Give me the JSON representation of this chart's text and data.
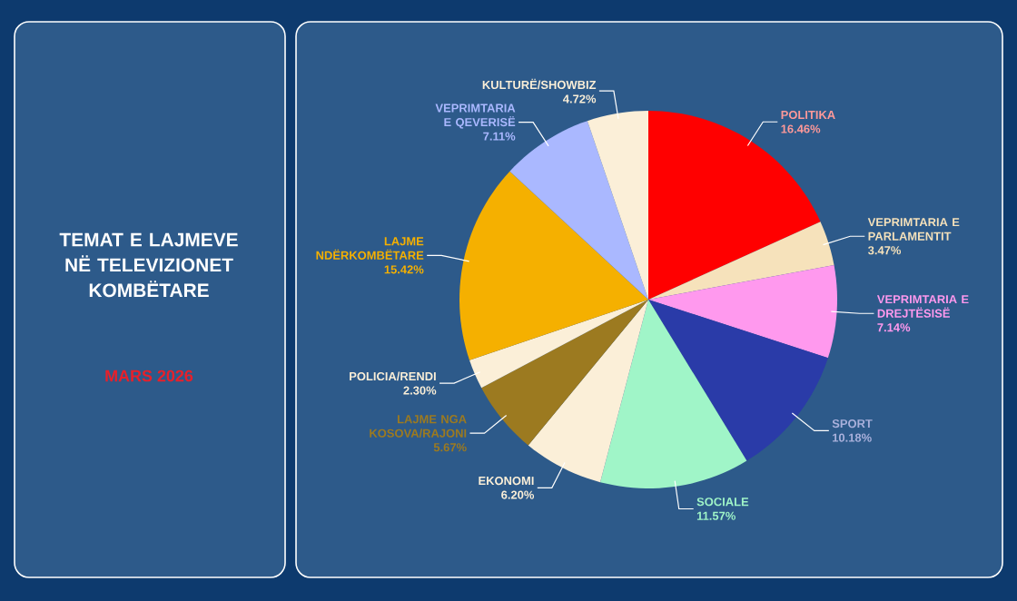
{
  "chart_data": {
    "type": "pie",
    "title": "TEMAT E LAJMEVE NË TELEVIZIONET KOMBËTARE",
    "subtitle": "MARS 2026",
    "categories": [
      "POLITIKA",
      "VEPRIMTARIA E PARLAMENTIT",
      "VEPRIMTARIA E DREJTËSISË",
      "SPORT",
      "SOCIALE",
      "EKONOMI",
      "LAJME NGA KOSOVA/RAJONI",
      "POLICIA/RENDI",
      "LAJME NDËRKOMBËTARE",
      "VEPRIMTARIA E QEVERISË",
      "KULTURË/SHOWBIZ"
    ],
    "values": [
      16.46,
      3.47,
      7.14,
      10.18,
      11.57,
      6.2,
      5.67,
      2.3,
      15.42,
      7.11,
      4.72
    ],
    "value_labels": [
      "16.46%",
      "3.47%",
      "7.14%",
      "10.18%",
      "11.57%",
      "6.20%",
      "5.67%",
      "2.30%",
      "15.42%",
      "7.11%",
      "4.72%"
    ],
    "colors": [
      "#ff0000",
      "#f6e2bb",
      "#ff99ee",
      "#2a3ba8",
      "#a0f5c8",
      "#fbefd8",
      "#9c7a20",
      "#fbefd8",
      "#f5b000",
      "#aab8ff",
      "#fbefd8"
    ]
  }
}
